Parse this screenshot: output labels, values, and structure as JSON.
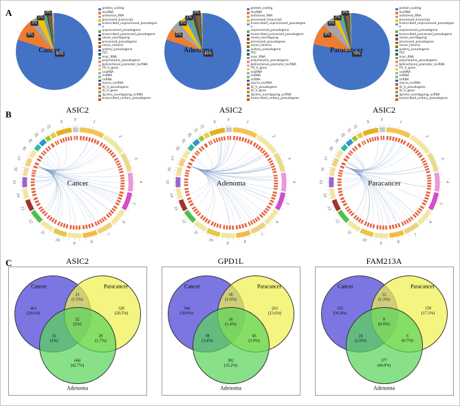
{
  "panels": {
    "a": "A",
    "b": "B",
    "c": "C"
  },
  "colors": {
    "pie_palette": [
      "#4472c4",
      "#ed7d31",
      "#a5a5a5",
      "#ffc000",
      "#5b9bd5",
      "#70ad47",
      "#264478",
      "#9e480e",
      "#636363",
      "#997300",
      "#255e91",
      "#43682b",
      "#698ed0",
      "#f1975a",
      "#b7b7b7",
      "#ffcd33",
      "#7cafdd",
      "#8cc168",
      "#335aa1",
      "#bb6321",
      "#767676",
      "#c09b00",
      "#327dc2",
      "#d26012"
    ],
    "circos_chrom_palette": [
      "#f0c550",
      "#f2e6a0",
      "#ead990",
      "#e89ad8",
      "#d34fc6",
      "#f2e6a0",
      "#f0d080",
      "#f5b942",
      "#f2e6a0",
      "#e6c84a",
      "#f2e6a0",
      "#4fbf4f",
      "#a33030",
      "#f2e6a0",
      "#9b66cc",
      "#f0e0a0",
      "#f0d080",
      "#f2e6a0",
      "#2fb8a8",
      "#2f96c8",
      "#9ac832",
      "#f0c550",
      "#e2b31e",
      "#c8c8c8"
    ],
    "circos_link": "#7fa3cc",
    "circos_block": "#e55f3a",
    "venn_cancer": "rgba(106,99,222,0.88)",
    "venn_paracancer": "rgba(240,240,80,0.72)",
    "venn_adenoma": "rgba(90,214,90,0.72)"
  },
  "chart_data": [
    {
      "type": "pie",
      "title": "Cancer",
      "categories": [
        "protein_coding",
        "lincRNA",
        "antisense_RNA",
        "processed_transcript",
        "transcribed_unprocessed_pseudogene",
        "unprocessed_pseudogene",
        "transcribed_processed_pseudogene",
        "sense_overlapping",
        "processed_pseudogene",
        "sense_intronic",
        "unitary_pseudogene",
        "TEC",
        "misc_RNA",
        "polymorphic_pseudogene",
        "bidirectional_promoter_lncRNA",
        "TR_V_gene",
        "snoRNA",
        "miRNA",
        "snRNA",
        "macro_lncRNA",
        "IG_V_pseudogene",
        "IG_V_gene",
        "3prime_overlapping_ncRNA",
        "transcribed_unitary_pseudogene"
      ],
      "values": [
        80,
        9,
        3,
        3,
        1,
        0.7,
        0.5,
        0.4,
        0.4,
        0.3,
        0.3,
        0.3,
        0.2,
        0.2,
        0.2,
        0.1,
        0.1,
        0.1,
        0.05,
        0.05,
        0.05,
        0.02,
        0.02,
        0.01
      ],
      "callouts": [
        "80%",
        "9%",
        "3%",
        "1%",
        "0%"
      ]
    },
    {
      "type": "pie",
      "title": "Adenoma",
      "categories": [
        "protein_coding",
        "lincRNA",
        "antisense_RNA",
        "processed_transcript",
        "transcribed_unprocessed_pseudogene",
        "unprocessed_pseudogene",
        "transcribed_processed_pseudogene",
        "sense_overlapping",
        "processed_pseudogene",
        "sense_intronic",
        "unitary_pseudogene",
        "TEC",
        "misc_RNA",
        "polymorphic_pseudogene",
        "bidirectional_promoter_lncRNA",
        "TR_V_gene",
        "snoRNA",
        "miRNA",
        "snRNA",
        "macro_lncRNA",
        "IG_V_pseudogene",
        "IG_V_gene",
        "3prime_overlapping_ncRNA",
        "transcribed_unitary_pseudogene"
      ],
      "values": [
        80,
        5,
        4,
        3,
        2,
        1.5,
        1,
        0.8,
        0.6,
        0.5,
        0.4,
        0.3,
        0.2,
        0.2,
        0.1,
        0.1,
        0.1,
        0.05,
        0.05,
        0.04,
        0.03,
        0.02,
        0.005,
        0.005
      ],
      "callouts": [
        "80%",
        "5%",
        "4%",
        "1%",
        "0%"
      ]
    },
    {
      "type": "pie",
      "title": "Paracancer",
      "categories": [
        "protein_coding",
        "lincRNA",
        "antisense_RNA",
        "processed_transcript",
        "transcribed_unprocessed_pseudogene",
        "unprocessed_pseudogene",
        "transcribed_processed_pseudogene",
        "sense_overlapping",
        "processed_pseudogene",
        "sense_intronic",
        "unitary_pseudogene",
        "TEC",
        "misc_RNA",
        "polymorphic_pseudogene",
        "bidirectional_promoter_lncRNA",
        "TR_V_gene",
        "snoRNA",
        "miRNA",
        "snRNA",
        "macro_lncRNA",
        "IG_V_pseudogene",
        "IG_V_gene",
        "3prime_overlapping_ncRNA",
        "transcribed_unitary_pseudogene"
      ],
      "values": [
        78,
        9,
        5,
        2,
        1.5,
        1,
        0.8,
        0.6,
        0.5,
        0.4,
        0.3,
        0.2,
        0.2,
        0.1,
        0.1,
        0.1,
        0.05,
        0.05,
        0.04,
        0.02,
        0.02,
        0.01,
        0.005,
        0.005
      ],
      "callouts": [
        "78%",
        "9%",
        "5%",
        "2%",
        "0%"
      ]
    },
    {
      "type": "circos",
      "title": "ASIC2",
      "center_label": "Cancer",
      "source_chromosome": "17",
      "chromosome_labels": [
        "1",
        "2",
        "3",
        "4",
        "5",
        "6",
        "7",
        "8",
        "9",
        "10",
        "11",
        "12",
        "13",
        "14",
        "15",
        "16",
        "17",
        "18",
        "19",
        "20",
        "21",
        "22",
        "X",
        "Y"
      ]
    },
    {
      "type": "circos",
      "title": "ASIC2",
      "center_label": "Adenoma",
      "source_chromosome": "17",
      "chromosome_labels": [
        "1",
        "2",
        "3",
        "4",
        "5",
        "6",
        "7",
        "8",
        "9",
        "10",
        "11",
        "12",
        "13",
        "14",
        "15",
        "16",
        "17",
        "18",
        "19",
        "20",
        "21",
        "22",
        "X",
        "Y"
      ]
    },
    {
      "type": "circos",
      "title": "ASIC2",
      "center_label": "Paracancer",
      "source_chromosome": "17",
      "chromosome_labels": [
        "1",
        "2",
        "3",
        "4",
        "5",
        "6",
        "7",
        "8",
        "9",
        "10",
        "11",
        "12",
        "13",
        "14",
        "15",
        "16",
        "17",
        "18",
        "19",
        "20",
        "21",
        "22",
        "X",
        "Y"
      ]
    },
    {
      "type": "venn",
      "title": "ASIC2",
      "sets": [
        "Cancer",
        "Paracancer",
        "Adenoma"
      ],
      "regions": {
        "cancer": {
          "count": "463",
          "pct": "(29.6%)"
        },
        "cancer_paracancer": {
          "count": "23",
          "pct": "(1.5%)"
        },
        "paracancer": {
          "count": "320",
          "pct": "(20.5%)"
        },
        "all": {
          "count": "32",
          "pct": "(2%)"
        },
        "cancer_adenoma": {
          "count": "32",
          "pct": "(2%)"
        },
        "paracancer_adenoma": {
          "count": "26",
          "pct": "(1.7%)"
        },
        "adenoma": {
          "count": "668",
          "pct": "(42.7%)"
        }
      }
    },
    {
      "type": "venn",
      "title": "GPD1L",
      "sets": [
        "Cancer",
        "Paracancer",
        "Adenoma"
      ],
      "regions": {
        "cancer": {
          "count": "344",
          "pct": "(30.9%)"
        },
        "cancer_paracancer": {
          "count": "18",
          "pct": "(1.6%)"
        },
        "paracancer": {
          "count": "263",
          "pct": "(23.6%)"
        },
        "all": {
          "count": "16",
          "pct": "(1.4%)"
        },
        "cancer_adenoma": {
          "count": "38",
          "pct": "(3.4%)"
        },
        "paracancer_adenoma": {
          "count": "43",
          "pct": "(3.9%)"
        },
        "adenoma": {
          "count": "392",
          "pct": "(35.2%)"
        }
      }
    },
    {
      "type": "venn",
      "title": "FAM213A",
      "sets": [
        "Cancer",
        "Paracancer",
        "Adenoma"
      ],
      "regions": {
        "cancer": {
          "count": "335",
          "pct": "(36.4%)"
        },
        "cancer_paracancer": {
          "count": "12",
          "pct": "(1.3%)"
        },
        "paracancer": {
          "count": "159",
          "pct": "(17.3%)"
        },
        "all": {
          "count": "8",
          "pct": "(0.9%)"
        },
        "cancer_adenoma": {
          "count": "24",
          "pct": "(2.6%)"
        },
        "paracancer_adenoma": {
          "count": "6",
          "pct": "(0.7%)"
        },
        "adenoma": {
          "count": "377",
          "pct": "(40.9%)"
        }
      }
    }
  ]
}
